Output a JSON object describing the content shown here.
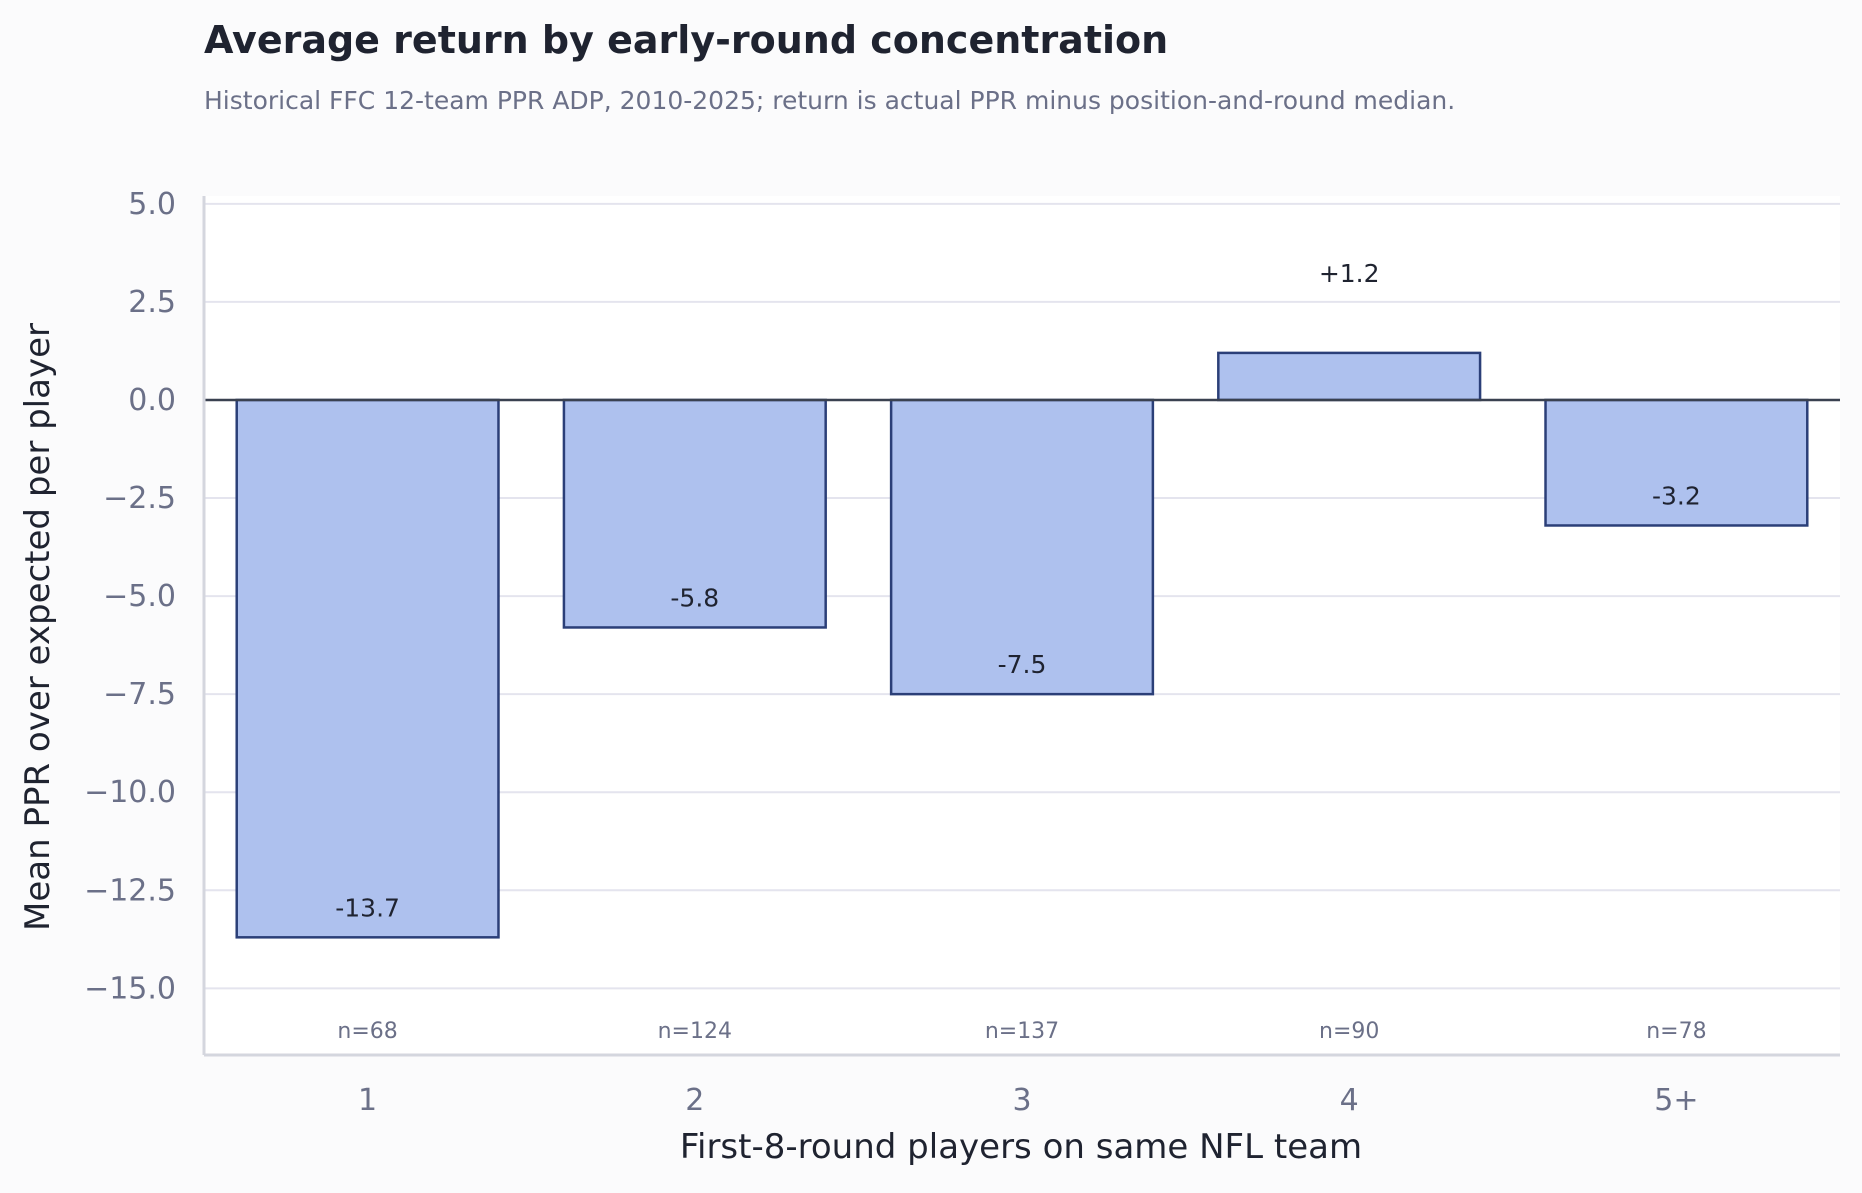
{
  "chart_data": {
    "type": "bar",
    "title": "Average return by early-round concentration",
    "subtitle": "Historical FFC 12-team PPR ADP, 2010-2025; return is actual PPR minus position-and-round median.",
    "xlabel": "First-8-round players on same NFL team",
    "ylabel": "Mean PPR over expected per player",
    "categories": [
      "1",
      "2",
      "3",
      "4",
      "5+"
    ],
    "values": [
      -13.7,
      -5.8,
      -7.5,
      1.2,
      -3.2
    ],
    "value_labels": [
      "-13.7",
      "-5.8",
      "-7.5",
      "+1.2",
      "-3.2"
    ],
    "sample_sizes": [
      "n=68",
      "n=124",
      "n=137",
      "n=90",
      "n=78"
    ],
    "ylim": [
      -16.7,
      5.2
    ],
    "yticks": [
      5.0,
      2.5,
      0.0,
      -2.5,
      -5.0,
      -7.5,
      -10.0,
      -12.5,
      -15.0
    ],
    "ytick_labels": [
      "5.0",
      "2.5",
      "0.0",
      "−2.5",
      "−5.0",
      "−7.5",
      "−10.0",
      "−12.5",
      "−15.0"
    ],
    "grid": true,
    "legend": "none",
    "colors": {
      "bar_fill": "#aec1ee",
      "bar_edge": "#2b3f78",
      "zero_line": "#3a4150",
      "grid": "#e4e4ee",
      "axis": "#d4d6de",
      "tick_text": "#6b7088",
      "title": "#1f2330",
      "subtitle": "#6b7088",
      "label_text": "#1f2330",
      "n_text": "#6b7088",
      "background": "#fbfbfc",
      "plot_background": "#ffffff"
    }
  }
}
